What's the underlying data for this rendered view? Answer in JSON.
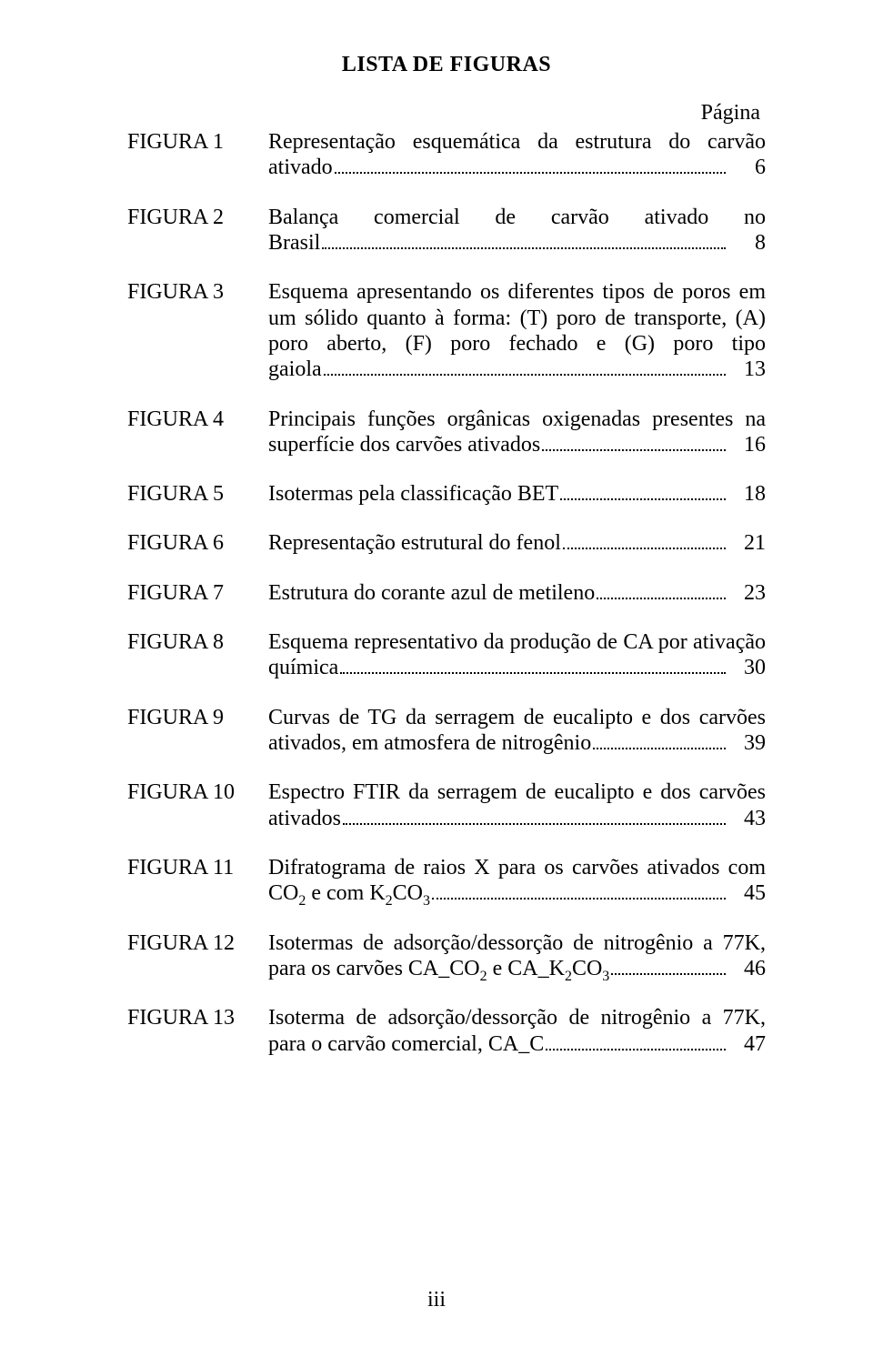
{
  "title": "LISTA DE FIGURAS",
  "page_label": "Página",
  "footer": "iii",
  "entries": [
    {
      "label": "FIGURA 1",
      "lines": [
        "Representação esquemática da estrutura do carvão"
      ],
      "last": "ativado",
      "page": "6"
    },
    {
      "label": "FIGURA 2",
      "lines": [
        "Balança comercial de carvão ativado no"
      ],
      "last": "Brasil",
      "page": "8"
    },
    {
      "label": "FIGURA 3",
      "lines": [
        "Esquema apresentando os diferentes tipos de poros em",
        "um sólido quanto à forma: (T) poro de transporte, (A)",
        "poro aberto, (F) poro fechado e (G) poro tipo"
      ],
      "last": "gaiola",
      "page": "13"
    },
    {
      "label": "FIGURA 4",
      "lines": [
        "Principais funções orgânicas oxigenadas presentes na"
      ],
      "last": "superfície dos carvões ativados",
      "page": "16"
    },
    {
      "label": "FIGURA 5",
      "lines": [],
      "last": "Isotermas pela classificação BET",
      "page": "18"
    },
    {
      "label": "FIGURA 6",
      "lines": [],
      "last": "Representação estrutural do fenol",
      "page": "21"
    },
    {
      "label": "FIGURA 7",
      "lines": [],
      "last": "Estrutura do corante azul de metileno",
      "page": "23"
    },
    {
      "label": "FIGURA 8",
      "lines": [
        "Esquema representativo da produção de CA por ativação"
      ],
      "last": "química",
      "page": "30"
    },
    {
      "label": "FIGURA 9",
      "lines": [
        "Curvas de TG da serragem de eucalipto e dos carvões"
      ],
      "last": "ativados, em atmosfera de nitrogênio ",
      "page": "39"
    },
    {
      "label": "FIGURA 10",
      "lines": [
        "Espectro FTIR da serragem de eucalipto e dos carvões"
      ],
      "last": "ativados",
      "page": "43"
    },
    {
      "label": "FIGURA 11",
      "lines": [
        "Difratograma de raios X para os carvões ativados com"
      ],
      "last_html": "CO<span class=\"sub\">2</span> e com K<span class=\"sub\">2</span>CO<span class=\"sub\">3</span>",
      "page": "45"
    },
    {
      "label": "FIGURA 12",
      "lines": [
        "Isotermas de adsorção/dessorção de nitrogênio a 77K,"
      ],
      "last_html": "para os carvões CA_CO<span class=\"sub\">2</span> e CA_K<span class=\"sub\">2</span>CO<span class=\"sub\">3</span>",
      "page": "46"
    },
    {
      "label": "FIGURA 13",
      "lines": [
        "Isoterma de adsorção/dessorção de nitrogênio a 77K,"
      ],
      "last": "para o carvão comercial, CA_C",
      "page": "47"
    }
  ]
}
